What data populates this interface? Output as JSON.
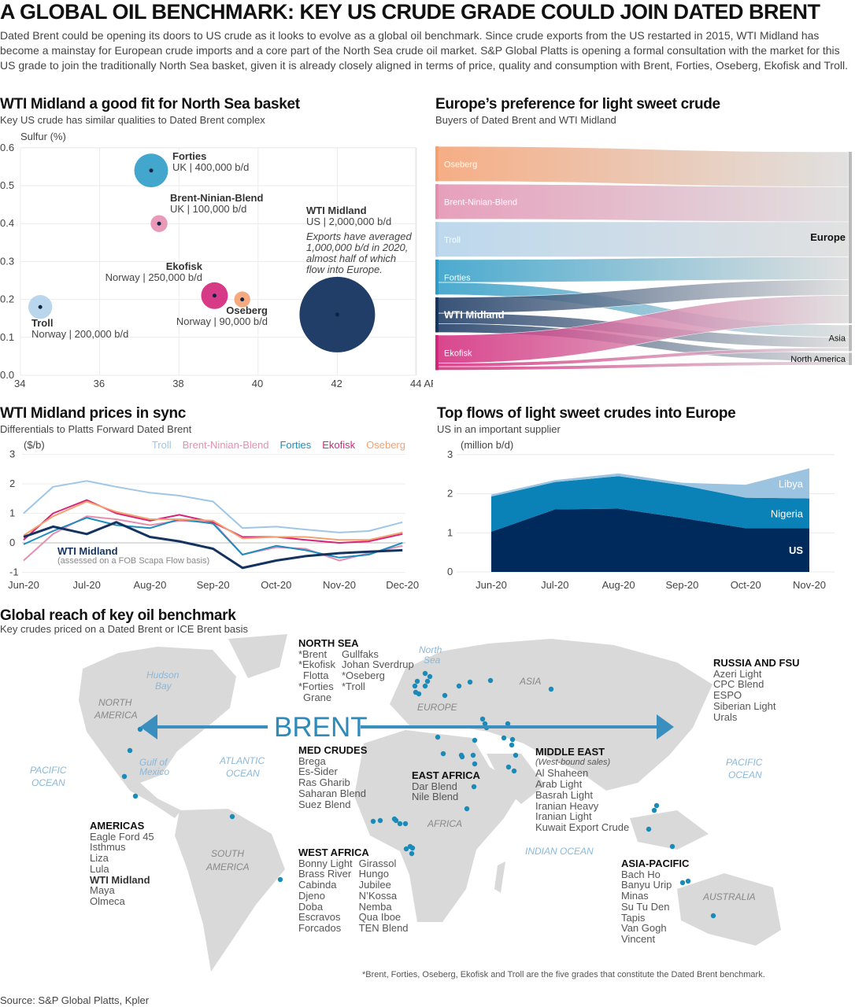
{
  "header": {
    "title": "A GLOBAL OIL BENCHMARK: KEY US CRUDE GRADE COULD JOIN DATED BRENT",
    "intro": "Dated Brent could be opening its doors to US crude as it looks to evolve as a global oil benchmark. Since crude exports from the US restarted in 2015, WTI Midland has become a mainstay for European crude imports and a core part of the North Sea crude oil market. S&P Global Platts is opening a formal consultation with the market for this US grade to join the traditionally North Sea basket, given it is already closely aligned in terms of price, quality and consumption with Brent, Forties, Oseberg, Ekofisk and Troll."
  },
  "chart_data": [
    {
      "type": "scatter",
      "title": "WTI Midland a good fit for North Sea basket",
      "subtitle": "Key US crude has similar qualities to Dated Brent complex",
      "ylabel": "Sulfur (%)",
      "xlabel": "API",
      "xlim": [
        34,
        44
      ],
      "ylim": [
        0,
        0.6
      ],
      "xticks": [
        "34",
        "36",
        "38",
        "40",
        "42",
        "44 API"
      ],
      "yticks": [
        "0.0",
        "0.1",
        "0.2",
        "0.3",
        "0.4",
        "0.5",
        "0.6"
      ],
      "grid": true,
      "points": [
        {
          "name": "Forties",
          "origin": "UK | 400,000 b/d",
          "api": 37.3,
          "sulfur": 0.54,
          "volume": 400000,
          "color": "#2e9cc8"
        },
        {
          "name": "Brent-Ninian-Blend",
          "origin": "UK | 100,000 b/d",
          "api": 37.5,
          "sulfur": 0.4,
          "volume": 100000,
          "color": "#e58fb0"
        },
        {
          "name": "Troll",
          "origin": "Norway | 200,000 b/d",
          "api": 34.5,
          "sulfur": 0.18,
          "volume": 200000,
          "color": "#b2d2ea"
        },
        {
          "name": "Ekofisk",
          "origin": "Norway | 250,000 b/d",
          "api": 38.9,
          "sulfur": 0.21,
          "volume": 250000,
          "color": "#d3267a"
        },
        {
          "name": "Oseberg",
          "origin": "Norway | 90,000 b/d",
          "api": 39.6,
          "sulfur": 0.2,
          "volume": 90000,
          "color": "#f5a070"
        },
        {
          "name": "WTI Midland",
          "origin": "US | 2,000,000 b/d",
          "api": 42.0,
          "sulfur": 0.16,
          "volume": 2000000,
          "color": "#14345f"
        }
      ],
      "annotation": "Exports have averaged 1,000,000 b/d in 2020, almost half of which flow into Europe."
    },
    {
      "type": "sankey",
      "title": "Europe’s preference for light sweet crude",
      "subtitle": "Buyers of Dated Brent and WTI Midland",
      "sources": [
        {
          "name": "Oseberg",
          "color": "#f5a070"
        },
        {
          "name": "Brent-Ninian-Blend",
          "color": "#e38fb0"
        },
        {
          "name": "Troll",
          "color": "#b2d2ea"
        },
        {
          "name": "Forties",
          "color": "#2b9cc7"
        },
        {
          "name": "WTI Midland",
          "color": "#14345f"
        },
        {
          "name": "Ekofisk",
          "color": "#d3267a"
        }
      ],
      "destinations": [
        "Europe",
        "Asia",
        "North America"
      ],
      "flows": [
        {
          "from": "Oseberg",
          "to": "Europe",
          "value": 1
        },
        {
          "from": "Brent-Ninian-Blend",
          "to": "Europe",
          "value": 1
        },
        {
          "from": "Troll",
          "to": "Europe",
          "value": 1
        },
        {
          "from": "Forties",
          "to": "Europe",
          "value": 0.65
        },
        {
          "from": "Forties",
          "to": "Asia",
          "value": 0.35
        },
        {
          "from": "WTI Midland",
          "to": "Europe",
          "value": 0.45
        },
        {
          "from": "WTI Midland",
          "to": "Asia",
          "value": 0.3
        },
        {
          "from": "WTI Midland",
          "to": "North America",
          "value": 0.25
        },
        {
          "from": "Ekofisk",
          "to": "Europe",
          "value": 0.8
        },
        {
          "from": "Ekofisk",
          "to": "Asia",
          "value": 0.1
        },
        {
          "from": "Ekofisk",
          "to": "North America",
          "value": 0.1
        }
      ]
    },
    {
      "type": "line",
      "title": "WTI Midland prices in sync",
      "subtitle": "Differentials to Platts Forward Dated Brent",
      "ylabel": "($/b)",
      "ylim": [
        -1,
        3
      ],
      "yticks": [
        "3",
        "2",
        "1",
        "0",
        "-1"
      ],
      "xticks": [
        "Jun-20",
        "Jul-20",
        "Aug-20",
        "Sep-20",
        "Oct-20",
        "Nov-20",
        "Dec-20"
      ],
      "x": [
        "2020-06-01",
        "2020-06-15",
        "2020-07-01",
        "2020-07-15",
        "2020-08-01",
        "2020-08-15",
        "2020-09-01",
        "2020-09-15",
        "2020-10-01",
        "2020-10-15",
        "2020-11-01",
        "2020-11-15",
        "2020-12-01"
      ],
      "series": [
        {
          "name": "Troll",
          "color": "#9fc6e6",
          "values": [
            1.0,
            1.9,
            2.1,
            1.9,
            1.7,
            1.6,
            1.4,
            0.5,
            0.55,
            0.45,
            0.35,
            0.4,
            0.7
          ]
        },
        {
          "name": "Brent-Ninian-Blend",
          "color": "#e58fb0",
          "values": [
            -0.6,
            0.3,
            0.9,
            0.8,
            0.6,
            0.75,
            0.7,
            -0.4,
            -0.15,
            -0.2,
            -0.6,
            -0.35,
            -0.1
          ]
        },
        {
          "name": "Forties",
          "color": "#1e8cbf",
          "values": [
            -0.05,
            0.4,
            0.85,
            0.6,
            0.5,
            0.8,
            0.65,
            -0.4,
            -0.1,
            -0.25,
            -0.5,
            -0.4,
            0.0
          ]
        },
        {
          "name": "Ekofisk",
          "color": "#d3267a",
          "values": [
            0.1,
            1.0,
            1.45,
            1.0,
            0.75,
            0.95,
            0.7,
            0.2,
            0.2,
            0.1,
            0.0,
            0.05,
            0.3
          ]
        },
        {
          "name": "Oseberg",
          "color": "#f5a070",
          "values": [
            0.25,
            0.9,
            1.4,
            1.05,
            0.8,
            0.8,
            0.75,
            0.15,
            0.2,
            0.2,
            0.1,
            0.1,
            0.35
          ]
        },
        {
          "name": "WTI Midland",
          "color": "#14345f",
          "values": [
            0.2,
            0.55,
            0.3,
            0.7,
            0.2,
            0.05,
            -0.2,
            -0.85,
            -0.6,
            -0.45,
            -0.35,
            -0.3,
            -0.25
          ]
        }
      ],
      "wti_label": "WTI Midland",
      "wti_note": "(assessed on a FOB Scapa Flow basis)"
    },
    {
      "type": "area",
      "stacked": true,
      "title": "Top flows of light sweet crudes into Europe",
      "subtitle": "US in an important supplier",
      "ylabel": "(million b/d)",
      "ylim": [
        0,
        3
      ],
      "yticks": [
        "3",
        "2",
        "1",
        "0"
      ],
      "categories": [
        "Jun-20",
        "Jul-20",
        "Aug-20",
        "Sep-20",
        "Oct-20",
        "Nov-20"
      ],
      "series": [
        {
          "name": "US",
          "color": "#002a5c",
          "values": [
            1.03,
            1.6,
            1.62,
            1.38,
            1.12,
            1.12
          ]
        },
        {
          "name": "Nigeria",
          "color": "#0a82b8",
          "values": [
            0.9,
            0.7,
            0.83,
            0.84,
            0.78,
            0.76
          ]
        },
        {
          "name": "Libya",
          "color": "#9cc4e0",
          "values": [
            0.05,
            0.05,
            0.07,
            0.06,
            0.33,
            0.77
          ]
        }
      ]
    }
  ],
  "map": {
    "title": "Global reach of key oil benchmark",
    "subtitle": "Key crudes priced on a Dated Brent or ICE Brent basis",
    "brent_label": "BRENT",
    "accent": "#2e8ab9",
    "oceans": [
      "PACIFIC",
      "OCEAN",
      "ATLANTIC",
      "OCEAN",
      "INDIAN OCEAN",
      "PACIFIC",
      "OCEAN",
      "Hudson",
      "Bay",
      "Gulf of",
      "Mexico",
      "North",
      "Sea"
    ],
    "continents": [
      "NORTH",
      "AMERICA",
      "SOUTH",
      "AMERICA",
      "EUROPE",
      "ASIA",
      "AFRICA",
      "AUSTRALIA"
    ],
    "regions": {
      "north_sea": {
        "title": "NORTH SEA",
        "col1": [
          "*Brent",
          "*Ekofisk",
          "Flotta",
          "*Forties",
          "Grane"
        ],
        "col2": [
          "Gullfaks",
          "Johan Sverdrup",
          "*Oseberg",
          "*Troll"
        ]
      },
      "med": {
        "title": "MED CRUDES",
        "items": [
          "Brega",
          "Es-Sider",
          "Ras Gharib",
          "Saharan Blend",
          "Suez Blend"
        ]
      },
      "east_africa": {
        "title": "EAST AFRICA",
        "items": [
          "Dar Blend",
          "Nile Blend"
        ]
      },
      "middle_east": {
        "title": "MIDDLE EAST",
        "note": "(West-bound sales)",
        "items": [
          "Al Shaheen",
          "Arab Light",
          "Basrah Light",
          "Iranian Heavy",
          "Iranian Light",
          "Kuwait Export Crude"
        ]
      },
      "russia": {
        "title": "RUSSIA AND FSU",
        "items": [
          "Azeri Light",
          "CPC Blend",
          "ESPO",
          "Siberian Light",
          "Urals"
        ]
      },
      "americas": {
        "title": "AMERICAS",
        "items": [
          "Eagle Ford 45",
          "Isthmus",
          "Liza",
          "Lula",
          "WTI Midland",
          "Maya",
          "Olmeca"
        ]
      },
      "west_africa": {
        "title": "WEST AFRICA",
        "col1": [
          "Bonny Light",
          "Brass River",
          "Cabinda",
          "Djeno",
          "Doba",
          "Escravos",
          "Forcados"
        ],
        "col2": [
          "Girassol",
          "Hungo",
          "Jubilee",
          "N’Kossa",
          "Nemba",
          "Qua Iboe",
          "TEN Blend"
        ]
      },
      "asia_pacific": {
        "title": "ASIA-PACIFIC",
        "items": [
          "Bach Ho",
          "Banyu Urip",
          "Minas",
          "Su Tu Den",
          "Tapis",
          "Van Gogh",
          "Vincent"
        ]
      }
    },
    "footnote": "*Brent, Forties, Oseberg, Ekofisk and Troll are the five grades that constitute the Dated Brent benchmark."
  },
  "source": "Source: S&P Global Platts, Kpler"
}
